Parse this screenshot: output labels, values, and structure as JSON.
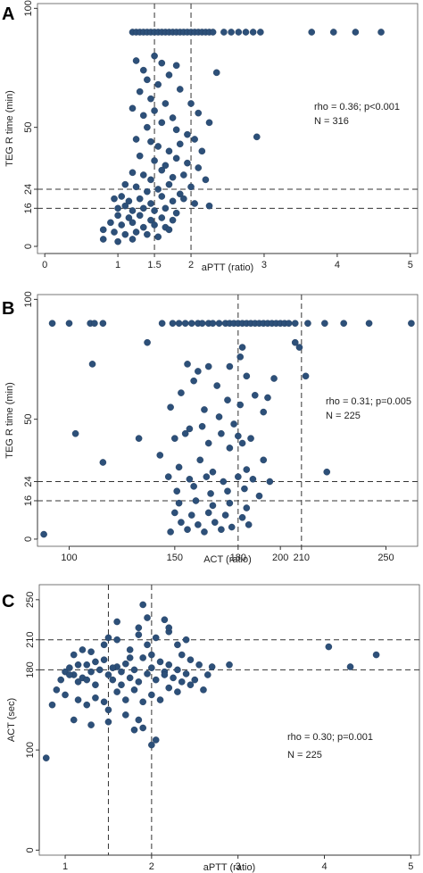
{
  "chart_data": [
    {
      "type": "scatter",
      "panel": "A",
      "xlabel": "aPTT (ratio)",
      "ylabel": "TEG R time (min)",
      "xlim": [
        -0.1,
        5.1
      ],
      "ylim": [
        -3,
        102
      ],
      "x_ticks": [
        0,
        1,
        1.5,
        2,
        3,
        4,
        5
      ],
      "x_tick_labels": [
        "0",
        "1",
        "1.5",
        "2",
        "3",
        "4",
        "5"
      ],
      "y_ticks": [
        0,
        16,
        24,
        50,
        100
      ],
      "y_tick_labels": [
        "0",
        "16",
        "24",
        "50",
        "100"
      ],
      "ref_lines": {
        "x": [
          1.5,
          2
        ],
        "y": [
          16,
          24
        ]
      },
      "annotations": [
        "rho = 0.36; p<0.001",
        "N = 316"
      ],
      "grid": false,
      "points": [
        [
          1.2,
          90
        ],
        [
          1.25,
          90
        ],
        [
          1.3,
          90
        ],
        [
          1.35,
          90
        ],
        [
          1.4,
          90
        ],
        [
          1.45,
          90
        ],
        [
          1.5,
          90
        ],
        [
          1.55,
          90
        ],
        [
          1.6,
          90
        ],
        [
          1.65,
          90
        ],
        [
          1.7,
          90
        ],
        [
          1.75,
          90
        ],
        [
          1.8,
          90
        ],
        [
          1.85,
          90
        ],
        [
          1.9,
          90
        ],
        [
          1.95,
          90
        ],
        [
          2.0,
          90
        ],
        [
          2.05,
          90
        ],
        [
          2.1,
          90
        ],
        [
          2.15,
          90
        ],
        [
          2.2,
          90
        ],
        [
          2.25,
          90
        ],
        [
          2.3,
          90
        ],
        [
          2.45,
          90
        ],
        [
          2.55,
          90
        ],
        [
          2.65,
          90
        ],
        [
          2.75,
          90
        ],
        [
          2.85,
          90
        ],
        [
          2.95,
          90
        ],
        [
          3.65,
          90
        ],
        [
          3.95,
          90
        ],
        [
          4.25,
          90
        ],
        [
          4.6,
          90
        ],
        [
          1.25,
          78
        ],
        [
          1.35,
          74
        ],
        [
          1.5,
          80
        ],
        [
          1.6,
          77
        ],
        [
          1.8,
          76
        ],
        [
          1.4,
          70
        ],
        [
          1.55,
          68
        ],
        [
          1.7,
          72
        ],
        [
          1.3,
          65
        ],
        [
          1.45,
          62
        ],
        [
          1.65,
          60
        ],
        [
          1.85,
          66
        ],
        [
          1.2,
          58
        ],
        [
          1.35,
          55
        ],
        [
          1.5,
          57
        ],
        [
          1.75,
          54
        ],
        [
          2.0,
          60
        ],
        [
          2.1,
          56
        ],
        [
          1.4,
          50
        ],
        [
          1.6,
          52
        ],
        [
          1.8,
          49
        ],
        [
          1.95,
          47
        ],
        [
          2.25,
          52
        ],
        [
          1.25,
          45
        ],
        [
          1.45,
          44
        ],
        [
          1.55,
          42
        ],
        [
          1.7,
          40
        ],
        [
          1.85,
          43
        ],
        [
          2.05,
          45
        ],
        [
          1.3,
          38
        ],
        [
          1.5,
          36
        ],
        [
          1.65,
          34
        ],
        [
          1.8,
          37
        ],
        [
          1.95,
          35
        ],
        [
          2.15,
          40
        ],
        [
          1.2,
          31
        ],
        [
          1.35,
          30
        ],
        [
          1.45,
          28
        ],
        [
          1.6,
          32
        ],
        [
          1.75,
          29
        ],
        [
          1.9,
          30
        ],
        [
          2.1,
          33
        ],
        [
          1.1,
          26
        ],
        [
          1.25,
          25
        ],
        [
          1.4,
          23
        ],
        [
          1.55,
          24
        ],
        [
          1.7,
          26
        ],
        [
          1.85,
          22
        ],
        [
          2.0,
          25
        ],
        [
          2.2,
          28
        ],
        [
          0.95,
          20
        ],
        [
          1.05,
          21
        ],
        [
          1.15,
          19
        ],
        [
          1.3,
          20
        ],
        [
          1.45,
          18
        ],
        [
          1.6,
          21
        ],
        [
          1.75,
          19
        ],
        [
          1.9,
          20
        ],
        [
          2.05,
          18
        ],
        [
          1.0,
          16
        ],
        [
          1.1,
          17
        ],
        [
          1.2,
          15
        ],
        [
          1.35,
          16
        ],
        [
          1.5,
          15
        ],
        [
          1.65,
          16
        ],
        [
          1.8,
          14
        ],
        [
          2.25,
          17
        ],
        [
          1.0,
          13
        ],
        [
          1.15,
          12
        ],
        [
          1.3,
          13
        ],
        [
          1.45,
          11
        ],
        [
          1.6,
          12
        ],
        [
          1.75,
          11
        ],
        [
          0.9,
          10
        ],
        [
          1.05,
          9
        ],
        [
          1.2,
          10
        ],
        [
          1.35,
          8
        ],
        [
          1.5,
          9
        ],
        [
          1.65,
          8
        ],
        [
          0.8,
          7
        ],
        [
          0.95,
          6
        ],
        [
          1.1,
          5
        ],
        [
          1.25,
          6
        ],
        [
          1.4,
          5
        ],
        [
          1.55,
          4
        ],
        [
          1.7,
          7
        ],
        [
          0.8,
          3
        ],
        [
          1.0,
          2
        ],
        [
          1.2,
          3
        ],
        [
          2.9,
          46
        ],
        [
          2.35,
          73
        ]
      ]
    },
    {
      "type": "scatter",
      "panel": "B",
      "xlabel": "ACT (ratio)",
      "ylabel": "TEG R time (min)",
      "xlim": [
        85,
        265
      ],
      "ylim": [
        -3,
        102
      ],
      "x_ticks": [
        100,
        150,
        180,
        200,
        210,
        250
      ],
      "x_tick_labels": [
        "100",
        "150",
        "180",
        "200",
        "210",
        "250"
      ],
      "y_ticks": [
        0,
        16,
        24,
        50,
        100
      ],
      "y_tick_labels": [
        "0",
        "16",
        "24",
        "50",
        "100"
      ],
      "ref_lines": {
        "x": [
          180,
          210
        ],
        "y": [
          16,
          24
        ]
      },
      "annotations": [
        "rho = 0.31; p=0.005",
        "N = 225"
      ],
      "grid": false,
      "points": [
        [
          92,
          90
        ],
        [
          100,
          90
        ],
        [
          110,
          90
        ],
        [
          112,
          90
        ],
        [
          116,
          90
        ],
        [
          144,
          90
        ],
        [
          149,
          90
        ],
        [
          152,
          90
        ],
        [
          155,
          90
        ],
        [
          158,
          90
        ],
        [
          161,
          90
        ],
        [
          163,
          90
        ],
        [
          166,
          90
        ],
        [
          168,
          90
        ],
        [
          171,
          90
        ],
        [
          174,
          90
        ],
        [
          176,
          90
        ],
        [
          178,
          90
        ],
        [
          180,
          90
        ],
        [
          182,
          90
        ],
        [
          184,
          90
        ],
        [
          186,
          90
        ],
        [
          188,
          90
        ],
        [
          190,
          90
        ],
        [
          192,
          90
        ],
        [
          194,
          90
        ],
        [
          196,
          90
        ],
        [
          198,
          90
        ],
        [
          200,
          90
        ],
        [
          202,
          90
        ],
        [
          204,
          90
        ],
        [
          207,
          90
        ],
        [
          213,
          90
        ],
        [
          221,
          90
        ],
        [
          230,
          90
        ],
        [
          242,
          90
        ],
        [
          262,
          90
        ],
        [
          137,
          82
        ],
        [
          182,
          80
        ],
        [
          207,
          82
        ],
        [
          209,
          80
        ],
        [
          111,
          73
        ],
        [
          212,
          68
        ],
        [
          156,
          73
        ],
        [
          161,
          70
        ],
        [
          166,
          72
        ],
        [
          181,
          76
        ],
        [
          176,
          72
        ],
        [
          159,
          66
        ],
        [
          170,
          64
        ],
        [
          184,
          68
        ],
        [
          197,
          67
        ],
        [
          153,
          61
        ],
        [
          175,
          58
        ],
        [
          188,
          60
        ],
        [
          194,
          59
        ],
        [
          148,
          55
        ],
        [
          164,
          54
        ],
        [
          181,
          56
        ],
        [
          192,
          53
        ],
        [
          171,
          51
        ],
        [
          178,
          48
        ],
        [
          163,
          47
        ],
        [
          155,
          44
        ],
        [
          150,
          42
        ],
        [
          180,
          43
        ],
        [
          157,
          46
        ],
        [
          172,
          44
        ],
        [
          186,
          42
        ],
        [
          103,
          44
        ],
        [
          133,
          42
        ],
        [
          166,
          40
        ],
        [
          176,
          38
        ],
        [
          182,
          40
        ],
        [
          116,
          32
        ],
        [
          143,
          35
        ],
        [
          162,
          33
        ],
        [
          192,
          33
        ],
        [
          152,
          30
        ],
        [
          168,
          28
        ],
        [
          184,
          29
        ],
        [
          147,
          26
        ],
        [
          157,
          25
        ],
        [
          165,
          26
        ],
        [
          173,
          24
        ],
        [
          180,
          26
        ],
        [
          187,
          25
        ],
        [
          195,
          24
        ],
        [
          222,
          28
        ],
        [
          151,
          20
        ],
        [
          159,
          22
        ],
        [
          167,
          19
        ],
        [
          175,
          20
        ],
        [
          183,
          21
        ],
        [
          190,
          18
        ],
        [
          152,
          15
        ],
        [
          160,
          16
        ],
        [
          168,
          14
        ],
        [
          176,
          15
        ],
        [
          184,
          13
        ],
        [
          150,
          11
        ],
        [
          158,
          10
        ],
        [
          166,
          11
        ],
        [
          174,
          10
        ],
        [
          182,
          9
        ],
        [
          153,
          7
        ],
        [
          161,
          6
        ],
        [
          169,
          7
        ],
        [
          177,
          5
        ],
        [
          185,
          6
        ],
        [
          148,
          3
        ],
        [
          156,
          4
        ],
        [
          164,
          3
        ],
        [
          172,
          4
        ],
        [
          88,
          2
        ]
      ]
    },
    {
      "type": "scatter",
      "panel": "C",
      "xlabel": "aPTT (ratio)",
      "ylabel": "ACT (sec)",
      "xlim": [
        0.7,
        5.1
      ],
      "ylim": [
        -5,
        265
      ],
      "x_ticks": [
        1,
        2,
        3,
        4,
        5
      ],
      "x_tick_labels": [
        "1",
        "2",
        "3",
        "4",
        "5"
      ],
      "y_ticks": [
        0,
        100,
        180,
        210,
        250
      ],
      "y_tick_labels": [
        "0",
        "100",
        "180",
        "210",
        "250"
      ],
      "ref_lines": {
        "x": [
          1.5,
          2
        ],
        "y": [
          180,
          210
        ]
      },
      "annotations": [
        "rho = 0.30; p=0.001",
        "N = 225"
      ],
      "grid": false,
      "points": [
        [
          0.78,
          92
        ],
        [
          0.85,
          145
        ],
        [
          0.9,
          160
        ],
        [
          0.95,
          170
        ],
        [
          1.0,
          178
        ],
        [
          1.05,
          182
        ],
        [
          1.1,
          175
        ],
        [
          1.15,
          168
        ],
        [
          1.2,
          172
        ],
        [
          1.25,
          185
        ],
        [
          1.3,
          178
        ],
        [
          1.35,
          165
        ],
        [
          1.4,
          180
        ],
        [
          1.45,
          190
        ],
        [
          1.5,
          175
        ],
        [
          1.55,
          170
        ],
        [
          1.6,
          183
        ],
        [
          1.65,
          178
        ],
        [
          1.7,
          186
        ],
        [
          1.75,
          172
        ],
        [
          1.8,
          180
        ],
        [
          1.85,
          168
        ],
        [
          1.9,
          192
        ],
        [
          1.95,
          176
        ],
        [
          2.0,
          182
        ],
        [
          2.05,
          170
        ],
        [
          2.1,
          188
        ],
        [
          2.15,
          178
        ],
        [
          2.2,
          185
        ],
        [
          2.25,
          172
        ],
        [
          2.3,
          180
        ],
        [
          2.35,
          195
        ],
        [
          2.4,
          176
        ],
        [
          2.45,
          190
        ],
        [
          2.55,
          185
        ],
        [
          2.7,
          183
        ],
        [
          2.9,
          185
        ],
        [
          1.1,
          195
        ],
        [
          1.2,
          200
        ],
        [
          1.3,
          198
        ],
        [
          1.45,
          205
        ],
        [
          1.5,
          212
        ],
        [
          1.6,
          210
        ],
        [
          1.75,
          200
        ],
        [
          1.85,
          215
        ],
        [
          1.95,
          205
        ],
        [
          2.05,
          212
        ],
        [
          2.2,
          218
        ],
        [
          2.3,
          205
        ],
        [
          2.4,
          210
        ],
        [
          1.85,
          222
        ],
        [
          1.6,
          228
        ],
        [
          1.9,
          245
        ],
        [
          1.95,
          232
        ],
        [
          2.15,
          230
        ],
        [
          2.2,
          222
        ],
        [
          1.0,
          155
        ],
        [
          1.15,
          150
        ],
        [
          1.25,
          145
        ],
        [
          1.35,
          152
        ],
        [
          1.45,
          148
        ],
        [
          1.5,
          140
        ],
        [
          1.6,
          158
        ],
        [
          1.7,
          150
        ],
        [
          1.8,
          160
        ],
        [
          1.9,
          148
        ],
        [
          2.0,
          155
        ],
        [
          2.1,
          150
        ],
        [
          2.2,
          162
        ],
        [
          2.3,
          158
        ],
        [
          2.45,
          165
        ],
        [
          2.6,
          160
        ],
        [
          1.1,
          130
        ],
        [
          1.3,
          125
        ],
        [
          1.5,
          128
        ],
        [
          1.7,
          135
        ],
        [
          1.8,
          120
        ],
        [
          1.9,
          122
        ],
        [
          1.85,
          130
        ],
        [
          2.0,
          105
        ],
        [
          2.05,
          110
        ],
        [
          1.05,
          175
        ],
        [
          1.15,
          185
        ],
        [
          1.25,
          170
        ],
        [
          1.35,
          188
        ],
        [
          1.55,
          182
        ],
        [
          1.65,
          165
        ],
        [
          1.75,
          192
        ],
        [
          2.0,
          195
        ],
        [
          2.15,
          175
        ],
        [
          2.35,
          168
        ],
        [
          2.5,
          170
        ],
        [
          2.65,
          175
        ],
        [
          4.05,
          203
        ],
        [
          4.3,
          183
        ],
        [
          4.6,
          195
        ]
      ]
    }
  ]
}
